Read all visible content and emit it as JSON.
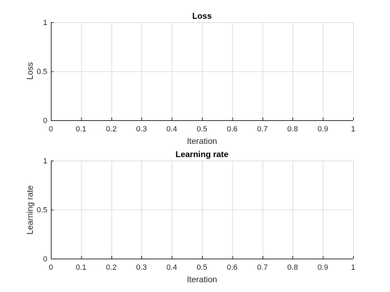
{
  "chart_data": [
    {
      "type": "line",
      "title": "Loss",
      "xlabel": "Iteration",
      "ylabel": "Loss",
      "xlim": [
        0,
        1
      ],
      "ylim": [
        0,
        1
      ],
      "xticks": [
        0,
        0.1,
        0.2,
        0.3,
        0.4,
        0.5,
        0.6,
        0.7,
        0.8,
        0.9,
        1
      ],
      "xtick_labels": [
        "0",
        "0.1",
        "0.2",
        "0.3",
        "0.4",
        "0.5",
        "0.6",
        "0.7",
        "0.8",
        "0.9",
        "1"
      ],
      "yticks": [
        0,
        0.5,
        1
      ],
      "ytick_labels": [
        "0",
        "0.5",
        "1"
      ],
      "grid": true,
      "series": []
    },
    {
      "type": "line",
      "title": "Learning rate",
      "xlabel": "Iteration",
      "ylabel": "Learning rate",
      "xlim": [
        0,
        1
      ],
      "ylim": [
        0,
        1
      ],
      "xticks": [
        0,
        0.1,
        0.2,
        0.3,
        0.4,
        0.5,
        0.6,
        0.7,
        0.8,
        0.9,
        1
      ],
      "xtick_labels": [
        "0",
        "0.1",
        "0.2",
        "0.3",
        "0.4",
        "0.5",
        "0.6",
        "0.7",
        "0.8",
        "0.9",
        "1"
      ],
      "yticks": [
        0,
        0.5,
        1
      ],
      "ytick_labels": [
        "0",
        "0.5",
        "1"
      ],
      "grid": true,
      "series": []
    }
  ]
}
